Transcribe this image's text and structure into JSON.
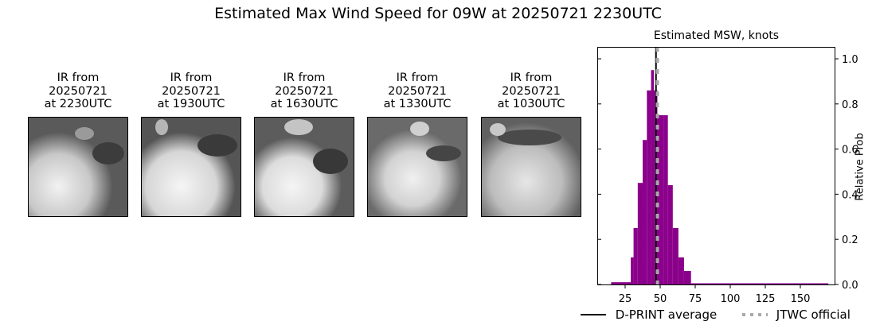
{
  "figure": {
    "title": "Estimated Max Wind Speed for 09W at 20250721 2230UTC"
  },
  "panels": [
    {
      "line1": "IR from",
      "line2": "20250721",
      "line3": "at 2230UTC"
    },
    {
      "line1": "IR from",
      "line2": "20250721",
      "line3": "at 1930UTC"
    },
    {
      "line1": "IR from",
      "line2": "20250721",
      "line3": "at 1630UTC"
    },
    {
      "line1": "IR from",
      "line2": "20250721",
      "line3": "at 1330UTC"
    },
    {
      "line1": "IR from",
      "line2": "20250721",
      "line3": "at 1030UTC"
    }
  ],
  "legend": {
    "dprint": "D-PRINT average",
    "jtwc": "JTWC official"
  },
  "colors": {
    "bars": "#8b008b",
    "dprint_line": "#000000",
    "jtwc_line": "#a9a9a9"
  },
  "chart_data": {
    "type": "bar",
    "title": "Estimated MSW, knots",
    "xlabel": "",
    "ylabel": "Relative Prob",
    "xlim": [
      0,
      175
    ],
    "ylim": [
      0,
      1.05
    ],
    "x_ticks": [
      25,
      50,
      75,
      100,
      125,
      150
    ],
    "y_ticks": [
      0.0,
      0.2,
      0.4,
      0.6,
      0.8,
      1.0
    ],
    "y_axis_position": "right",
    "grid": false,
    "legend_position": "below",
    "bins": [
      {
        "x0": 15,
        "x1": 29,
        "value": 0.01
      },
      {
        "x0": 29,
        "x1": 31,
        "value": 0.12
      },
      {
        "x0": 31,
        "x1": 34,
        "value": 0.25
      },
      {
        "x0": 34,
        "x1": 37.5,
        "value": 0.45
      },
      {
        "x0": 37.5,
        "x1": 40.5,
        "value": 0.64
      },
      {
        "x0": 40.5,
        "x1": 43.5,
        "value": 0.86
      },
      {
        "x0": 43.5,
        "x1": 45.5,
        "value": 0.95
      },
      {
        "x0": 45.5,
        "x1": 48,
        "value": 0.86
      },
      {
        "x0": 48,
        "x1": 52.5,
        "value": 0.75
      },
      {
        "x0": 52.5,
        "x1": 55.5,
        "value": 0.75
      },
      {
        "x0": 55.5,
        "x1": 59,
        "value": 0.44
      },
      {
        "x0": 59,
        "x1": 63,
        "value": 0.25
      },
      {
        "x0": 63,
        "x1": 67,
        "value": 0.12
      },
      {
        "x0": 67,
        "x1": 72,
        "value": 0.06
      },
      {
        "x0": 72,
        "x1": 170,
        "value": 0.005
      }
    ],
    "series": [
      {
        "name": "D-PRINT average",
        "type": "vline",
        "x": 47
      },
      {
        "name": "JTWC official",
        "type": "vline",
        "x": 48,
        "style": "dotted"
      }
    ]
  }
}
